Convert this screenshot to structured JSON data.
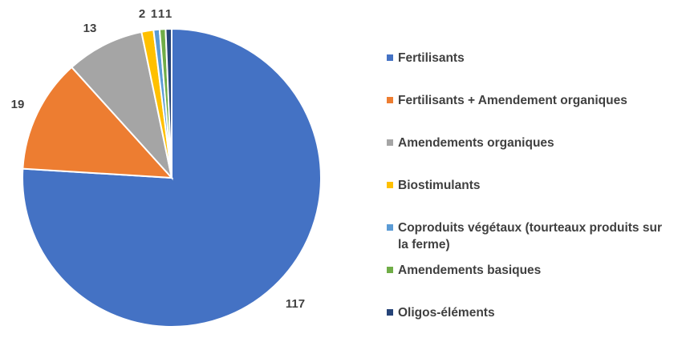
{
  "chart_data": {
    "type": "pie",
    "title": "",
    "categories": [
      "Fertilisants",
      "Fertilisants + Amendement organiques",
      "Amendements organiques",
      "Biostimulants",
      "Coproduits végétaux (tourteaux produits sur la ferme)",
      "Amendements basiques",
      "Oligos-éléments"
    ],
    "values": [
      117,
      19,
      13,
      2,
      1,
      1,
      1
    ],
    "data_labels": [
      "117",
      "19",
      "13",
      "2",
      "1",
      "1",
      "1"
    ],
    "colors": [
      "#4472C4",
      "#ED7D31",
      "#A5A5A5",
      "#FFC000",
      "#5B9BD5",
      "#70AD47",
      "#264478"
    ],
    "start_angle_deg": 0,
    "direction": "clockwise",
    "legend_position": "right"
  }
}
